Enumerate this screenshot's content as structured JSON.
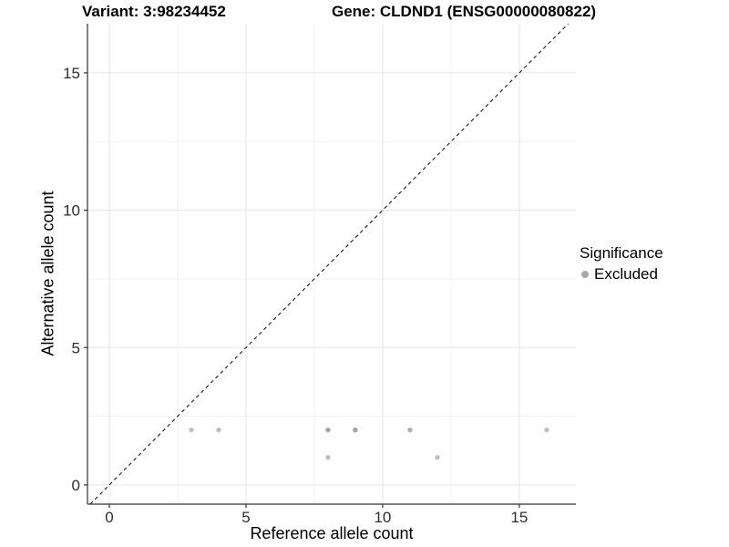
{
  "titles": {
    "variant": "Variant: 3:98234452",
    "gene": "Gene: CLDND1 (ENSG00000080822)"
  },
  "legend": {
    "title": "Significance",
    "items": [
      {
        "label": "Excluded",
        "color": "#a8a8a8"
      }
    ]
  },
  "chart_data": {
    "type": "scatter",
    "title": "Variant: 3:98234452 / Gene: CLDND1 (ENSG00000080822)",
    "xlabel": "Reference allele count",
    "ylabel": "Alternative allele count",
    "xlim": [
      -0.8,
      17.07
    ],
    "ylim": [
      -0.7,
      16.79
    ],
    "x_ticks": [
      0,
      5,
      10,
      15
    ],
    "y_ticks": [
      0,
      5,
      10,
      15
    ],
    "x_minor_ticks": [
      2.5,
      7.5,
      12.5
    ],
    "y_minor_ticks": [
      2.5,
      7.5,
      12.5
    ],
    "grid": true,
    "legend_position": "right",
    "identity_line": {
      "style": "dashed",
      "from": -0.7,
      "to": 16.79
    },
    "series": [
      {
        "name": "Excluded",
        "points": [
          {
            "x": 3,
            "y": 2,
            "shade": "#c1c1c1"
          },
          {
            "x": 4,
            "y": 2,
            "shade": "#bdbdbd"
          },
          {
            "x": 8,
            "y": 1,
            "shade": "#bdbdbd"
          },
          {
            "x": 8,
            "y": 2,
            "shade": "#a3a3a3"
          },
          {
            "x": 9,
            "y": 2,
            "shade": "#a3a3a3"
          },
          {
            "x": 11,
            "y": 2,
            "shade": "#b0b0b0"
          },
          {
            "x": 12,
            "y": 1,
            "shade": "#bdbdbd"
          },
          {
            "x": 16,
            "y": 2,
            "shade": "#c1c1c1"
          }
        ]
      }
    ],
    "colors": {
      "grid_major": "#e5e5e5",
      "grid_minor": "#f0f0f0",
      "axis_line": "#333333",
      "tick_mark": "#333333",
      "tick_label": "#2e2e2e",
      "identity_line": "#1a1a1a",
      "point_default": "#b4b4b4",
      "background": "#ffffff"
    }
  }
}
